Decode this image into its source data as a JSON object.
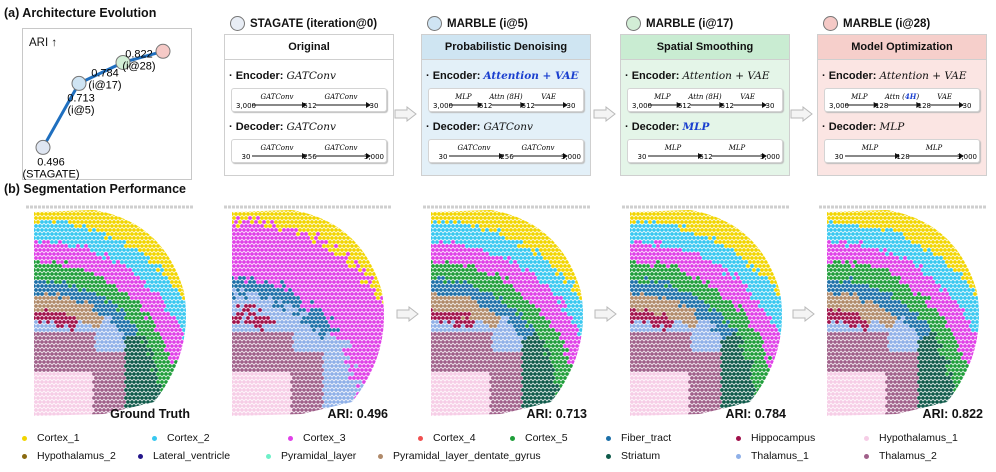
{
  "section_a_title": "(a) Architecture Evolution",
  "section_b_title": "(b) Segmentation Performance",
  "ari_chart": {
    "axis_label": "ARI ↑",
    "points": [
      {
        "label": "0.496",
        "sublabel": "(STAGATE)",
        "value": 0.496,
        "color": "#dfe6f2"
      },
      {
        "label": "0.713",
        "sublabel": "(i@5)",
        "value": 0.713,
        "color": "#cfe4f3"
      },
      {
        "label": "0.784",
        "sublabel": "(i@17)",
        "value": 0.784,
        "color": "#d2eed6"
      },
      {
        "label": "0.822",
        "sublabel": "(i@28)",
        "value": 0.822,
        "color": "#f5c9c6"
      }
    ],
    "line_color": "#1f6fbf"
  },
  "stages": [
    {
      "header": "STAGATE (iteration@0)",
      "dot_color": "#e8edf5",
      "title": "Original",
      "title_bg": "#ffffff",
      "body_bg": "#ffffff",
      "encoder_label": "Encoder:",
      "encoder_value": "GATConv",
      "encoder_hl": false,
      "encoder_pipe": {
        "nodes": [
          "3,000",
          "512",
          "30"
        ],
        "ops": [
          "GATConv",
          "GATConv"
        ]
      },
      "decoder_label": "Decoder:",
      "decoder_value": "GATConv",
      "decoder_hl": false,
      "decoder_pipe": {
        "nodes": [
          "30",
          "256",
          "3,000"
        ],
        "ops": [
          "GATConv",
          "GATConv"
        ]
      }
    },
    {
      "header": "MARBLE (i@5)",
      "dot_color": "#cfe4f3",
      "title": "Probabilistic Denoising",
      "title_bg": "#cfe5f2",
      "body_bg": "#e3f0f8",
      "encoder_label": "Encoder:",
      "encoder_value": "Attention + VAE",
      "encoder_hl": true,
      "encoder_pipe": {
        "nodes": [
          "3,000",
          "512",
          "512",
          "30"
        ],
        "ops": [
          "MLP",
          "Attn (8H)",
          "VAE"
        ]
      },
      "decoder_label": "Decoder:",
      "decoder_value": "GATConv",
      "decoder_hl": false,
      "decoder_pipe": {
        "nodes": [
          "30",
          "256",
          "3,000"
        ],
        "ops": [
          "GATConv",
          "GATConv"
        ]
      }
    },
    {
      "header": "MARBLE (i@17)",
      "dot_color": "#d2eed6",
      "title": "Spatial Smoothing",
      "title_bg": "#c9ecd2",
      "body_bg": "#e4f5e8",
      "encoder_label": "Encoder:",
      "encoder_value": "Attention + VAE",
      "encoder_hl": false,
      "encoder_pipe": {
        "nodes": [
          "3,000",
          "512",
          "512",
          "30"
        ],
        "ops": [
          "MLP",
          "Attn (8H)",
          "VAE"
        ]
      },
      "decoder_label": "Decoder:",
      "decoder_value": "MLP",
      "decoder_hl": true,
      "decoder_pipe": {
        "nodes": [
          "30",
          "512",
          "3,000"
        ],
        "ops": [
          "MLP",
          "MLP"
        ]
      }
    },
    {
      "header": "MARBLE (i@28)",
      "dot_color": "#f5c9c6",
      "title": "Model Optimization",
      "title_bg": "#f6cfcb",
      "body_bg": "#fbe5e3",
      "encoder_label": "Encoder:",
      "encoder_value": "Attention + VAE",
      "encoder_hl": false,
      "encoder_pipe": {
        "nodes": [
          "3,000",
          "128",
          "128",
          "30"
        ],
        "ops": [
          "MLP",
          "Attn (4H)",
          "VAE"
        ],
        "hl_op": "4H"
      },
      "decoder_label": "Decoder:",
      "decoder_value": "MLP",
      "decoder_hl": false,
      "decoder_pipe": {
        "nodes": [
          "30",
          "128",
          "3,000"
        ],
        "ops": [
          "MLP",
          "MLP"
        ]
      }
    }
  ],
  "tiles": [
    {
      "label": "Ground Truth",
      "variant": 0
    },
    {
      "label": "ARI: 0.496",
      "variant": 1
    },
    {
      "label": "ARI: 0.713",
      "variant": 2
    },
    {
      "label": "ARI: 0.784",
      "variant": 3
    },
    {
      "label": "ARI: 0.822",
      "variant": 4
    }
  ],
  "legend": [
    {
      "label": "Cortex_1",
      "color": "#f2d500"
    },
    {
      "label": "Cortex_2",
      "color": "#38c8f0"
    },
    {
      "label": "Cortex_3",
      "color": "#e040e8"
    },
    {
      "label": "Cortex_4",
      "color": "#f05050"
    },
    {
      "label": "Cortex_5",
      "color": "#1f9e3a"
    },
    {
      "label": "Fiber_tract",
      "color": "#1c6fa8"
    },
    {
      "label": "Hippocampus",
      "color": "#a0104a"
    },
    {
      "label": "Hypothalamus_1",
      "color": "#f6cde6"
    },
    {
      "label": "Hypothalamus_2",
      "color": "#8a6a10"
    },
    {
      "label": "Lateral_ventricle",
      "color": "#24168a"
    },
    {
      "label": "Pyramidal_layer",
      "color": "#6ef0c8"
    },
    {
      "label": "Pyramidal_layer_dentate_gyrus",
      "color": "#b08a6a"
    },
    {
      "label": "Striatum",
      "color": "#0f5a4a"
    },
    {
      "label": "Thalamus_1",
      "color": "#8fb0e8"
    },
    {
      "label": "Thalamus_2",
      "color": "#a0608a"
    }
  ]
}
